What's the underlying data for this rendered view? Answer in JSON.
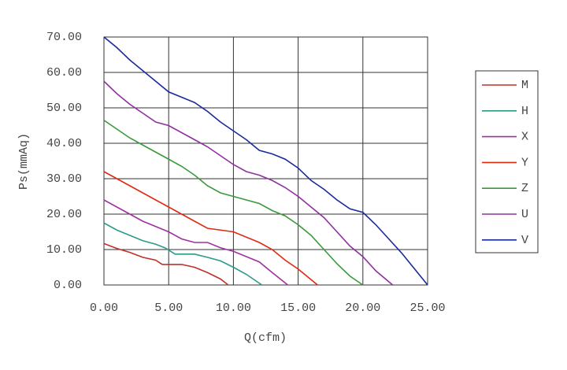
{
  "chart_data": {
    "type": "line",
    "x_label": "Q(cfm)",
    "y_label": "Ps(mmAq)",
    "xlim": [
      0,
      25
    ],
    "ylim": [
      0,
      70
    ],
    "xticks": [
      {
        "value": 0,
        "label": "0.00"
      },
      {
        "value": 5,
        "label": "5.00"
      },
      {
        "value": 10,
        "label": "10.00"
      },
      {
        "value": 15,
        "label": "15.00"
      },
      {
        "value": 20,
        "label": "20.00"
      },
      {
        "value": 25,
        "label": "25.00"
      }
    ],
    "yticks": [
      {
        "value": 0,
        "label": "0.00"
      },
      {
        "value": 10,
        "label": "10.00"
      },
      {
        "value": 20,
        "label": "20.00"
      },
      {
        "value": 30,
        "label": "30.00"
      },
      {
        "value": 40,
        "label": "40.00"
      },
      {
        "value": 50,
        "label": "50.00"
      },
      {
        "value": 60,
        "label": "60.00"
      },
      {
        "value": 70,
        "label": "70.00"
      }
    ],
    "grid": true,
    "legend": "right",
    "series": [
      {
        "name": "M",
        "color": "#c0302a",
        "x": [
          0,
          1,
          2,
          3,
          4,
          4.5,
          6,
          7,
          8,
          9,
          9.6
        ],
        "values": [
          11.7,
          10.3,
          9.2,
          7.8,
          7,
          5.8,
          5.8,
          5,
          3.5,
          1.7,
          0
        ]
      },
      {
        "name": "H",
        "color": "#2a9a8a",
        "x": [
          0,
          1,
          2,
          3,
          4,
          4.7,
          5.5,
          7,
          8,
          9,
          10,
          11,
          12.2
        ],
        "values": [
          17.5,
          15.5,
          14,
          12.5,
          11.5,
          10.5,
          8.7,
          8.7,
          7.8,
          6.8,
          5,
          3,
          0
        ]
      },
      {
        "name": "X",
        "color": "#a030a0",
        "x": [
          0,
          1,
          2,
          3,
          4,
          5,
          6,
          7,
          8,
          9,
          10,
          11,
          12,
          13,
          14.2
        ],
        "values": [
          24,
          22,
          20,
          18,
          16.5,
          15,
          13,
          12,
          12,
          10.5,
          9.5,
          8,
          6.5,
          3.5,
          0
        ]
      },
      {
        "name": "Y",
        "color": "#e02a10",
        "x": [
          0,
          1,
          2,
          3,
          4,
          5,
          6,
          7,
          8,
          9,
          10,
          11,
          12,
          13,
          14,
          15,
          16.5
        ],
        "values": [
          32,
          30,
          28,
          26,
          24,
          22,
          20,
          18,
          16,
          15.5,
          15,
          13.5,
          12,
          10,
          7,
          4.5,
          0
        ]
      },
      {
        "name": "Z",
        "color": "#3a9a3a",
        "x": [
          0,
          1,
          2,
          3,
          4,
          5,
          6,
          7,
          8,
          9,
          10,
          11,
          12,
          13,
          14,
          15,
          16,
          17,
          18,
          19,
          20
        ],
        "values": [
          46.5,
          44,
          41.5,
          39.5,
          37.5,
          35.5,
          33.5,
          31,
          28,
          26,
          25,
          24,
          23,
          21,
          19.5,
          17,
          14,
          10,
          6,
          2.5,
          0
        ]
      },
      {
        "name": "U",
        "color": "#9030a0",
        "x": [
          0,
          1,
          2,
          3,
          4,
          5,
          6,
          7,
          8,
          9,
          10,
          11,
          12,
          13,
          14,
          15,
          16,
          17,
          18,
          19,
          20,
          21,
          22.3
        ],
        "values": [
          57.5,
          54,
          51,
          48.5,
          46,
          45,
          43,
          41,
          39,
          36.5,
          34,
          32,
          31,
          29.5,
          27.5,
          25,
          22,
          19,
          15,
          11,
          8,
          4,
          0
        ]
      },
      {
        "name": "V",
        "color": "#1a2a9a",
        "x": [
          0,
          1,
          2,
          3,
          4,
          5,
          6,
          7,
          8,
          9,
          10,
          11,
          12,
          13,
          14,
          15,
          16,
          17,
          18,
          19,
          20,
          21,
          22,
          23,
          24,
          25
        ],
        "values": [
          70,
          67,
          63.5,
          60.5,
          57.5,
          54.5,
          53,
          51.5,
          49,
          46,
          43.5,
          41,
          38,
          37,
          35.5,
          33,
          29.5,
          27,
          24,
          21.5,
          20.5,
          17,
          13,
          9,
          4.5,
          0
        ]
      }
    ]
  }
}
